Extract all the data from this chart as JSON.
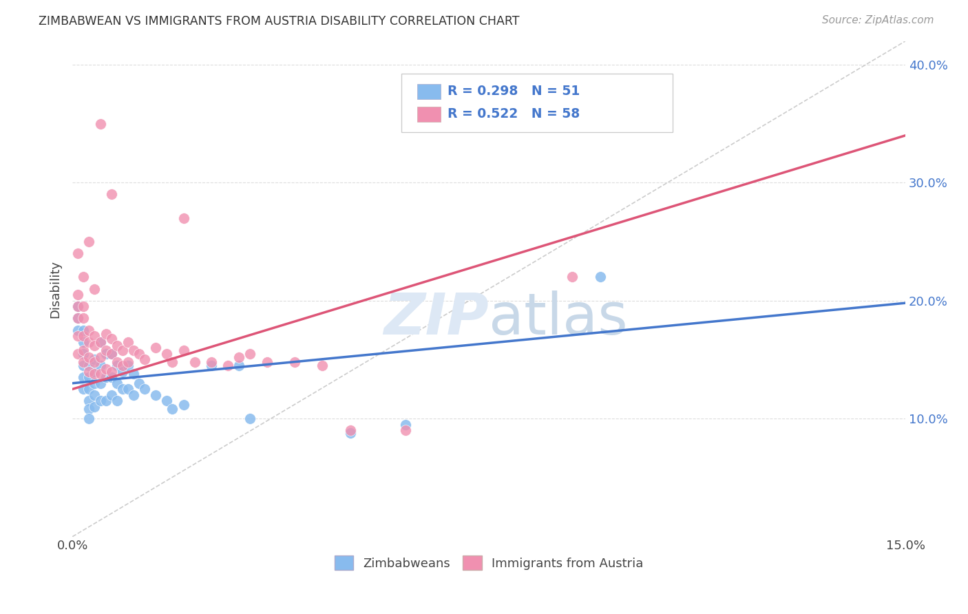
{
  "title": "ZIMBABWEAN VS IMMIGRANTS FROM AUSTRIA DISABILITY CORRELATION CHART",
  "source": "Source: ZipAtlas.com",
  "ylabel": "Disability",
  "x_min": 0.0,
  "x_max": 0.15,
  "y_min": 0.0,
  "y_max": 0.42,
  "x_ticks": [
    0.0,
    0.05,
    0.1,
    0.15
  ],
  "x_tick_labels": [
    "0.0%",
    "",
    "",
    "15.0%"
  ],
  "y_ticks": [
    0.1,
    0.2,
    0.3,
    0.4
  ],
  "y_tick_labels": [
    "10.0%",
    "20.0%",
    "30.0%",
    "40.0%"
  ],
  "blue_scatter_color": "#88bbee",
  "pink_scatter_color": "#f090b0",
  "blue_line_color": "#4477cc",
  "pink_line_color": "#dd5577",
  "diagonal_color": "#cccccc",
  "watermark_color": "#dde8f5",
  "legend_label_blue": "Zimbabweans",
  "legend_label_pink": "Immigrants from Austria",
  "blue_R": 0.298,
  "blue_N": 51,
  "pink_R": 0.522,
  "pink_N": 58,
  "blue_line_x": [
    0.0,
    0.15
  ],
  "blue_line_y": [
    0.13,
    0.198
  ],
  "pink_line_x": [
    0.0,
    0.15
  ],
  "pink_line_y": [
    0.125,
    0.34
  ],
  "diag_line_x": [
    0.0,
    0.15
  ],
  "diag_line_y": [
    0.0,
    0.42
  ],
  "blue_scatter_x": [
    0.001,
    0.001,
    0.001,
    0.002,
    0.002,
    0.002,
    0.002,
    0.002,
    0.002,
    0.003,
    0.003,
    0.003,
    0.003,
    0.003,
    0.003,
    0.004,
    0.004,
    0.004,
    0.004,
    0.004,
    0.005,
    0.005,
    0.005,
    0.005,
    0.006,
    0.006,
    0.006,
    0.007,
    0.007,
    0.007,
    0.008,
    0.008,
    0.008,
    0.009,
    0.009,
    0.01,
    0.01,
    0.011,
    0.011,
    0.012,
    0.013,
    0.015,
    0.017,
    0.018,
    0.02,
    0.025,
    0.03,
    0.032,
    0.05,
    0.06,
    0.095
  ],
  "blue_scatter_y": [
    0.195,
    0.185,
    0.175,
    0.175,
    0.165,
    0.155,
    0.145,
    0.135,
    0.125,
    0.145,
    0.135,
    0.125,
    0.115,
    0.108,
    0.1,
    0.15,
    0.14,
    0.13,
    0.12,
    0.11,
    0.165,
    0.145,
    0.13,
    0.115,
    0.155,
    0.135,
    0.115,
    0.155,
    0.135,
    0.12,
    0.145,
    0.13,
    0.115,
    0.14,
    0.125,
    0.145,
    0.125,
    0.138,
    0.12,
    0.13,
    0.125,
    0.12,
    0.115,
    0.108,
    0.112,
    0.145,
    0.145,
    0.1,
    0.088,
    0.095,
    0.22
  ],
  "pink_scatter_x": [
    0.001,
    0.001,
    0.001,
    0.001,
    0.001,
    0.002,
    0.002,
    0.002,
    0.002,
    0.002,
    0.003,
    0.003,
    0.003,
    0.003,
    0.004,
    0.004,
    0.004,
    0.004,
    0.005,
    0.005,
    0.005,
    0.006,
    0.006,
    0.006,
    0.007,
    0.007,
    0.007,
    0.008,
    0.008,
    0.009,
    0.009,
    0.01,
    0.01,
    0.011,
    0.012,
    0.013,
    0.015,
    0.017,
    0.018,
    0.02,
    0.022,
    0.025,
    0.028,
    0.03,
    0.035,
    0.04,
    0.045,
    0.05,
    0.005,
    0.032,
    0.02,
    0.06,
    0.09,
    0.007,
    0.003,
    0.001,
    0.002,
    0.004
  ],
  "pink_scatter_y": [
    0.205,
    0.195,
    0.185,
    0.17,
    0.155,
    0.195,
    0.185,
    0.17,
    0.158,
    0.148,
    0.175,
    0.165,
    0.152,
    0.14,
    0.17,
    0.162,
    0.148,
    0.138,
    0.165,
    0.152,
    0.138,
    0.172,
    0.158,
    0.142,
    0.168,
    0.155,
    0.14,
    0.162,
    0.148,
    0.158,
    0.145,
    0.165,
    0.148,
    0.158,
    0.155,
    0.15,
    0.16,
    0.155,
    0.148,
    0.158,
    0.148,
    0.148,
    0.145,
    0.152,
    0.148,
    0.148,
    0.145,
    0.09,
    0.35,
    0.155,
    0.27,
    0.09,
    0.22,
    0.29,
    0.25,
    0.24,
    0.22,
    0.21
  ]
}
